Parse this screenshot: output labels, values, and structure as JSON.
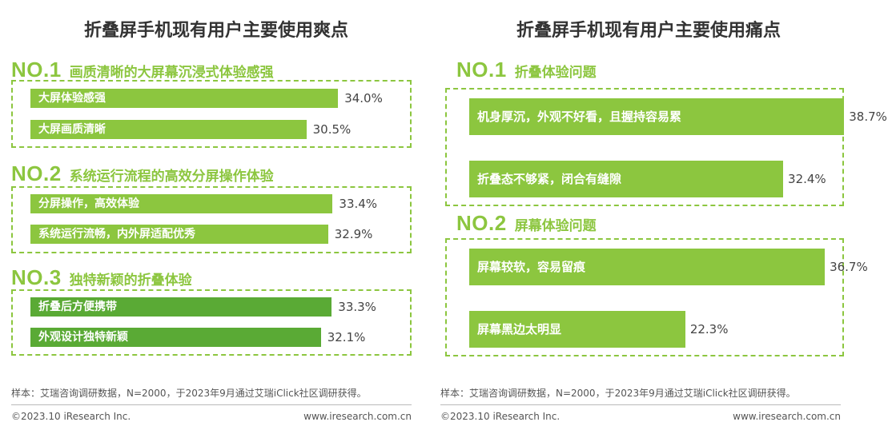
{
  "colors": {
    "light_green": "#8cc63f",
    "dark_green": "#5aaa35"
  },
  "left": {
    "title": "折叠屏手机现有用户主要使用爽点",
    "note": "样本：艾瑞咨询调研数据，N=2000，于2023年9月通过艾瑞iClick社区调研获得。",
    "copyright": "©2023.10 iResearch Inc.",
    "website": "www.iresearch.com.cn",
    "groups": [
      {
        "rank": "NO.1",
        "title": "画质清晰的大屏幕沉浸式体验感强"
      },
      {
        "rank": "NO.2",
        "title": "系统运行流程的高效分屏操作体验"
      },
      {
        "rank": "NO.3",
        "title": "独特新颖的折叠体验"
      }
    ]
  },
  "right": {
    "title": "折叠屏手机现有用户主要使用痛点",
    "note": "样本：艾瑞咨询调研数据，N=2000，于2023年9月通过艾瑞iClick社区调研获得。",
    "copyright": "©2023.10 iResearch Inc.",
    "website": "www.iresearch.com.cn",
    "groups": [
      {
        "rank": "NO.1",
        "title": "折叠体验问题"
      },
      {
        "rank": "NO.2",
        "title": "屏幕体验问题"
      }
    ]
  },
  "chart_data": [
    {
      "type": "bar",
      "orientation": "horizontal",
      "title": "折叠屏手机现有用户主要使用爽点",
      "unit": "%",
      "groups": [
        "NO.1 画质清晰的大屏幕沉浸式体验感强",
        "NO.2 系统运行流程的高效分屏操作体验",
        "NO.3 独特新颖的折叠体验"
      ],
      "categories": [
        "大屏体验感强",
        "大屏画质清晰",
        "分屏操作，高效体验",
        "系统运行流畅，内外屏适配优秀",
        "折叠后方便携带",
        "外观设计独特新颖"
      ],
      "values": [
        34.0,
        30.5,
        33.4,
        32.9,
        33.3,
        32.1
      ],
      "labels": [
        "34.0%",
        "30.5%",
        "33.4%",
        "32.9%",
        "33.3%",
        "32.1%"
      ],
      "colors": [
        "#8cc63f",
        "#8cc63f",
        "#8cc63f",
        "#8cc63f",
        "#5aaa35",
        "#5aaa35"
      ]
    },
    {
      "type": "bar",
      "orientation": "horizontal",
      "title": "折叠屏手机现有用户主要使用痛点",
      "unit": "%",
      "groups": [
        "NO.1 折叠体验问题",
        "NO.2 屏幕体验问题"
      ],
      "categories": [
        "机身厚沉，外观不好看，且握持容易累",
        "折叠态不够紧，闭合有缝隙",
        "屏幕较软，容易留痕",
        "屏幕黑边太明显"
      ],
      "values": [
        38.7,
        32.4,
        36.7,
        22.3
      ],
      "labels": [
        "38.7%",
        "32.4%",
        "36.7%",
        "22.3%"
      ],
      "colors": [
        "#8cc63f",
        "#8cc63f",
        "#8cc63f",
        "#8cc63f"
      ]
    }
  ]
}
